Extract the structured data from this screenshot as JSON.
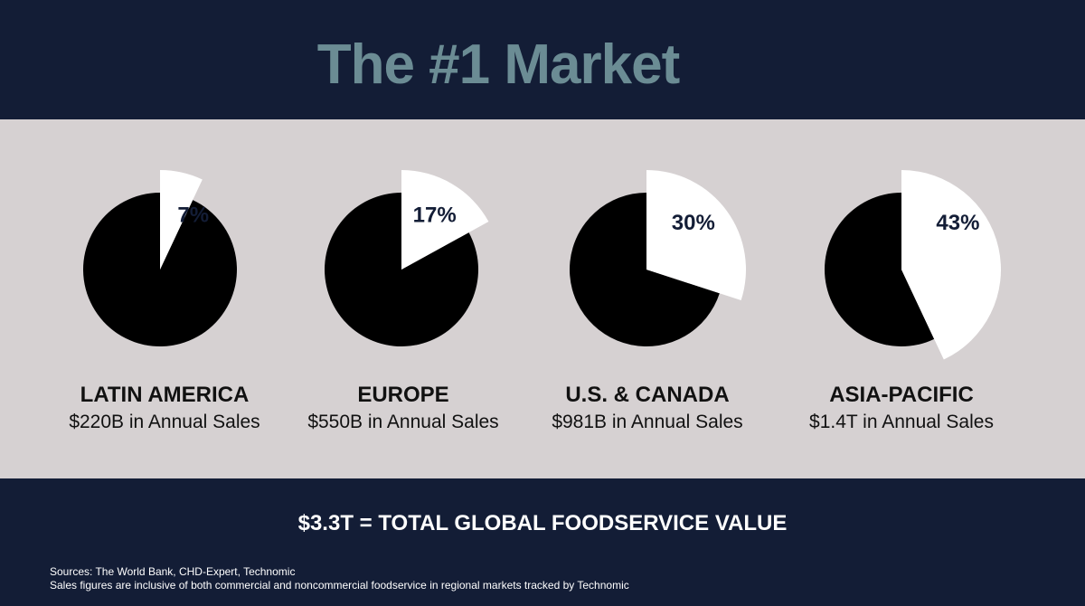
{
  "title": "The #1 Market",
  "chart_data": {
    "type": "pie",
    "charts": [
      {
        "region": "LATIN AMERICA",
        "sales": "$220B in Annual Sales",
        "label": "7%",
        "value": 7
      },
      {
        "region": "EUROPE",
        "sales": "$550B in Annual Sales",
        "label": "17%",
        "value": 17
      },
      {
        "region": "U.S. & CANADA",
        "sales": "$981B in Annual Sales",
        "label": "30%",
        "value": 30
      },
      {
        "region": "ASIA-PACIFIC",
        "sales": "$1.4T in Annual Sales",
        "label": "43%",
        "value": 43
      }
    ]
  },
  "total": "$3.3T = TOTAL GLOBAL FOODSERVICE VALUE",
  "sources": {
    "line1": "Sources: The World Bank, CHD-Expert, Technomic",
    "line2": "Sales figures are inclusive of both commercial and noncommercial foodservice in regional markets tracked by Technomic"
  },
  "colors": {
    "background": "#131d36",
    "panel": "#d6d1d2",
    "title": "#6b8c94",
    "pie_main": "#000000",
    "pie_slice": "#ffffff"
  }
}
